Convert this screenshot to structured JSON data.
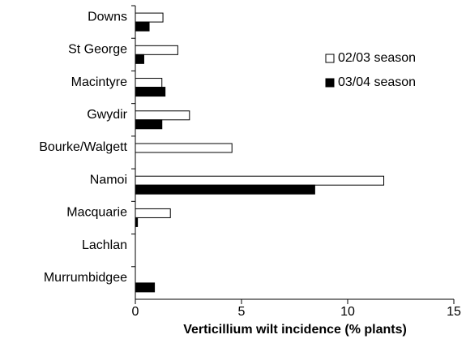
{
  "chart_data": {
    "type": "barh",
    "xlabel": "Verticillium wilt incidence (% plants)",
    "categories": [
      "Downs",
      "St George",
      "Macintyre",
      "Gwydir",
      "Bourke/Walgett",
      "Namoi",
      "Macquarie",
      "Lachlan",
      "Murrumbidgee"
    ],
    "series": [
      {
        "name": "02/03 season",
        "color": "#ffffff",
        "values": [
          1.3,
          2.0,
          1.25,
          2.55,
          4.55,
          11.7,
          1.65,
          0,
          0
        ]
      },
      {
        "name": "03/04 season",
        "color": "#000000",
        "values": [
          0.65,
          0.4,
          1.4,
          1.25,
          0,
          8.45,
          0.1,
          0,
          0.9
        ]
      }
    ],
    "xlim": [
      0,
      15
    ],
    "xticks": [
      0,
      5,
      10,
      15
    ],
    "legend": "upper right"
  }
}
